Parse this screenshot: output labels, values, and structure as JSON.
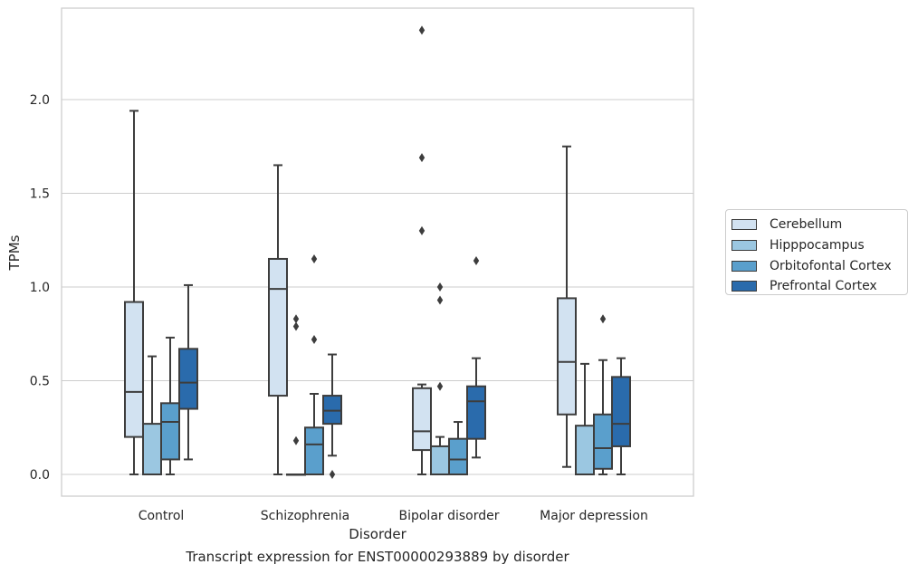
{
  "chart_data": {
    "type": "boxplot",
    "xlabel": "Disorder",
    "ylabel": "TPMs",
    "categories": [
      "Control",
      "Schizophrenia",
      "Bipolar disorder",
      "Major depression"
    ],
    "ylim": [
      -0.12,
      2.5
    ],
    "yticks": [
      0.0,
      0.5,
      1.0,
      1.5,
      2.0
    ],
    "ytick_labels": [
      "0.0",
      "0.5",
      "1.0",
      "1.5",
      "2.0"
    ],
    "grid": "horizontal",
    "legend_position": "right",
    "series": [
      {
        "name": "Cerebellum",
        "color": "#d2e2f1",
        "boxes": [
          {
            "whislo": 0.0,
            "q1": 0.2,
            "med": 0.44,
            "q3": 0.92,
            "whishi": 1.94,
            "fliers": []
          },
          {
            "whislo": 0.0,
            "q1": 0.42,
            "med": 0.99,
            "q3": 1.15,
            "whishi": 1.65,
            "fliers": []
          },
          {
            "whislo": 0.0,
            "q1": 0.13,
            "med": 0.23,
            "q3": 0.46,
            "whishi": 0.48,
            "fliers": [
              1.3,
              1.69,
              2.37
            ]
          },
          {
            "whislo": 0.04,
            "q1": 0.32,
            "med": 0.6,
            "q3": 0.94,
            "whishi": 1.75,
            "fliers": []
          }
        ]
      },
      {
        "name": "Hipppocampus",
        "color": "#9bc7e1",
        "boxes": [
          {
            "whislo": 0.0,
            "q1": 0.0,
            "med": 0.0,
            "q3": 0.27,
            "whishi": 0.63,
            "fliers": []
          },
          {
            "whislo": 0.0,
            "q1": 0.0,
            "med": 0.0,
            "q3": 0.0,
            "whishi": 0.0,
            "fliers": [
              0.18,
              0.79,
              0.83
            ]
          },
          {
            "whislo": 0.0,
            "q1": 0.0,
            "med": 0.0,
            "q3": 0.15,
            "whishi": 0.2,
            "fliers": [
              0.47,
              0.93,
              1.0
            ]
          },
          {
            "whislo": 0.0,
            "q1": 0.0,
            "med": 0.0,
            "q3": 0.26,
            "whishi": 0.59,
            "fliers": []
          }
        ]
      },
      {
        "name": "Orbitofontal Cortex",
        "color": "#5a9fcc",
        "boxes": [
          {
            "whislo": 0.0,
            "q1": 0.08,
            "med": 0.28,
            "q3": 0.38,
            "whishi": 0.73,
            "fliers": []
          },
          {
            "whislo": 0.0,
            "q1": 0.0,
            "med": 0.16,
            "q3": 0.25,
            "whishi": 0.43,
            "fliers": [
              0.72,
              1.15
            ]
          },
          {
            "whislo": 0.0,
            "q1": 0.0,
            "med": 0.08,
            "q3": 0.19,
            "whishi": 0.28,
            "fliers": []
          },
          {
            "whislo": 0.0,
            "q1": 0.03,
            "med": 0.14,
            "q3": 0.32,
            "whishi": 0.61,
            "fliers": [
              0.83
            ]
          }
        ]
      },
      {
        "name": "Prefrontal Cortex",
        "color": "#2a6bac",
        "boxes": [
          {
            "whislo": 0.08,
            "q1": 0.35,
            "med": 0.49,
            "q3": 0.67,
            "whishi": 1.01,
            "fliers": []
          },
          {
            "whislo": 0.1,
            "q1": 0.27,
            "med": 0.34,
            "q3": 0.42,
            "whishi": 0.64,
            "fliers": [
              0.0
            ]
          },
          {
            "whislo": 0.09,
            "q1": 0.19,
            "med": 0.39,
            "q3": 0.47,
            "whishi": 0.62,
            "fliers": [
              1.14
            ]
          },
          {
            "whislo": 0.0,
            "q1": 0.15,
            "med": 0.27,
            "q3": 0.52,
            "whishi": 0.62,
            "fliers": []
          }
        ]
      }
    ]
  },
  "caption": "Transcript expression for ENST00000293889 by disorder"
}
